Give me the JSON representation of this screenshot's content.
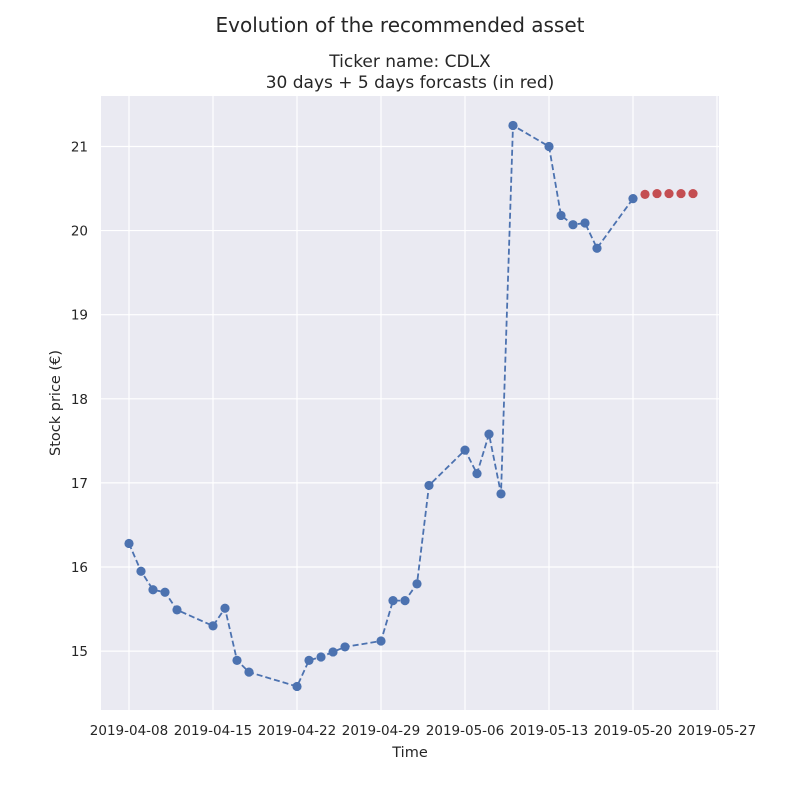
{
  "chart_data": {
    "type": "line",
    "suptitle": "Evolution of the recommended asset",
    "title_lines": [
      "Ticker name: CDLX",
      "30 days + 5 days forcasts (in red)"
    ],
    "xlabel": "Time",
    "ylabel": "Stock price (€)",
    "x_ticks": [
      "2019-04-08",
      "2019-04-15",
      "2019-04-22",
      "2019-04-29",
      "2019-05-06",
      "2019-05-13",
      "2019-05-20",
      "2019-05-27"
    ],
    "y_ticks": [
      15,
      16,
      17,
      18,
      19,
      20,
      21
    ],
    "xlim": [
      "2019-04-05 16:00",
      "2019-05-27 04:00"
    ],
    "ylim": [
      14.3,
      21.6
    ],
    "grid": true,
    "background": "#eaeaf2",
    "series": [
      {
        "color": "#4c72b0",
        "line_style": "dashed",
        "marker": "circle",
        "points": [
          {
            "x": "2019-04-08",
            "y": 16.28
          },
          {
            "x": "2019-04-09",
            "y": 15.95
          },
          {
            "x": "2019-04-10",
            "y": 15.73
          },
          {
            "x": "2019-04-11",
            "y": 15.7
          },
          {
            "x": "2019-04-12",
            "y": 15.49
          },
          {
            "x": "2019-04-15",
            "y": 15.3
          },
          {
            "x": "2019-04-16",
            "y": 15.51
          },
          {
            "x": "2019-04-17",
            "y": 14.89
          },
          {
            "x": "2019-04-18",
            "y": 14.75
          },
          {
            "x": "2019-04-22",
            "y": 14.58
          },
          {
            "x": "2019-04-23",
            "y": 14.89
          },
          {
            "x": "2019-04-24",
            "y": 14.93
          },
          {
            "x": "2019-04-25",
            "y": 14.99
          },
          {
            "x": "2019-04-26",
            "y": 15.05
          },
          {
            "x": "2019-04-29",
            "y": 15.12
          },
          {
            "x": "2019-04-30",
            "y": 15.6
          },
          {
            "x": "2019-05-01",
            "y": 15.6
          },
          {
            "x": "2019-05-02",
            "y": 15.8
          },
          {
            "x": "2019-05-03",
            "y": 16.97
          },
          {
            "x": "2019-05-06",
            "y": 17.39
          },
          {
            "x": "2019-05-07",
            "y": 17.11
          },
          {
            "x": "2019-05-08",
            "y": 17.58
          },
          {
            "x": "2019-05-09",
            "y": 16.87
          },
          {
            "x": "2019-05-10",
            "y": 21.25
          },
          {
            "x": "2019-05-13",
            "y": 21.0
          },
          {
            "x": "2019-05-14",
            "y": 20.18
          },
          {
            "x": "2019-05-15",
            "y": 20.07
          },
          {
            "x": "2019-05-16",
            "y": 20.09
          },
          {
            "x": "2019-05-17",
            "y": 19.79
          },
          {
            "x": "2019-05-20",
            "y": 20.38
          }
        ]
      },
      {
        "color": "#c44e52",
        "line_style": "none",
        "marker": "circle",
        "points": [
          {
            "x": "2019-05-21",
            "y": 20.43
          },
          {
            "x": "2019-05-22",
            "y": 20.44
          },
          {
            "x": "2019-05-23",
            "y": 20.44
          },
          {
            "x": "2019-05-24",
            "y": 20.44
          },
          {
            "x": "2019-05-25",
            "y": 20.44
          }
        ]
      }
    ]
  }
}
